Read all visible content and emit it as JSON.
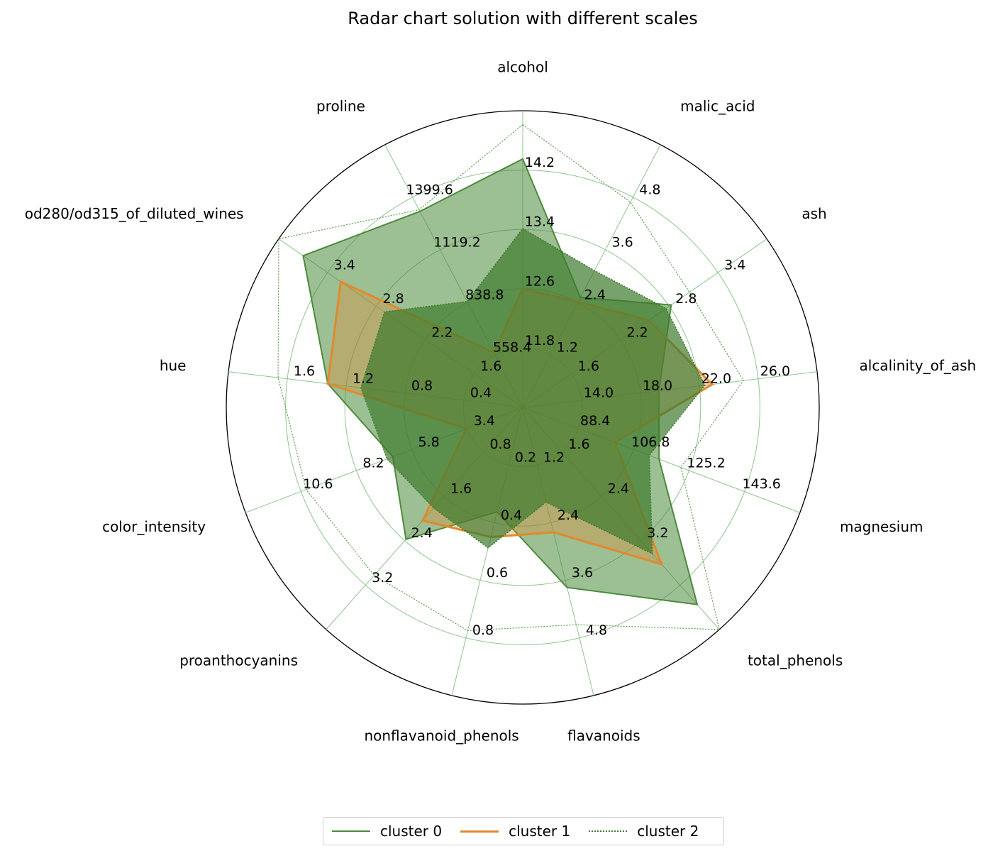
{
  "chart_data": {
    "type": "radar",
    "title": "Radar chart solution with different scales",
    "axes": [
      {
        "name": "alcohol",
        "ticks": [
          "11.8",
          "12.6",
          "13.4",
          "14.2"
        ],
        "range": [
          11.0,
          14.2
        ]
      },
      {
        "name": "malic_acid",
        "ticks": [
          "1.2",
          "2.4",
          "3.6",
          "4.8"
        ],
        "range": [
          0.0,
          4.8
        ]
      },
      {
        "name": "ash",
        "ticks": [
          "1.6",
          "2.2",
          "2.8",
          "3.4"
        ],
        "range": [
          1.0,
          3.4
        ]
      },
      {
        "name": "alcalinity_of_ash",
        "ticks": [
          "14.0",
          "18.0",
          "22.0",
          "26.0"
        ],
        "range": [
          10.0,
          26.0
        ]
      },
      {
        "name": "magnesium",
        "ticks": [
          "88.4",
          "106.8",
          "125.2",
          "143.6"
        ],
        "range": [
          70.0,
          143.6
        ]
      },
      {
        "name": "total_phenols",
        "ticks": [
          "1.6",
          "2.4",
          "3.2"
        ],
        "range": [
          0.0,
          3.2
        ]
      },
      {
        "name": "flavanoids",
        "ticks": [
          "1.2",
          "2.4",
          "3.6",
          "4.8"
        ],
        "range": [
          0.0,
          4.8
        ]
      },
      {
        "name": "nonflavanoid_phenols",
        "ticks": [
          "0.2",
          "0.4",
          "0.6",
          "0.8"
        ],
        "range": [
          0.0,
          0.8
        ]
      },
      {
        "name": "proanthocyanins",
        "ticks": [
          "0.8",
          "1.6",
          "2.4",
          "3.2"
        ],
        "range": [
          0.0,
          3.2
        ]
      },
      {
        "name": "color_intensity",
        "ticks": [
          "3.4",
          "5.8",
          "8.2",
          "10.6"
        ],
        "range": [
          1.0,
          10.6
        ]
      },
      {
        "name": "hue",
        "ticks": [
          "0.4",
          "0.8",
          "1.2",
          "1.6"
        ],
        "range": [
          0.0,
          1.6
        ]
      },
      {
        "name": "od280/od315_of_diluted_wines",
        "ticks": [
          "1.6",
          "2.2",
          "2.8",
          "3.4"
        ],
        "range": [
          1.0,
          3.4
        ]
      },
      {
        "name": "proline",
        "ticks": [
          "558.4",
          "838.8",
          "1119.2",
          "1399.6"
        ],
        "range": [
          278.0,
          1399.6
        ]
      }
    ],
    "series": [
      {
        "name": "cluster 0",
        "color": "#4c8a3c",
        "values": [
          13.68,
          2.01,
          2.46,
          17.4,
          106.2,
          2.84,
          3.0,
          0.29,
          1.9,
          5.5,
          1.06,
          3.16,
          1115
        ]
      },
      {
        "name": "cluster 1",
        "color": "#e08a2e",
        "values": [
          12.28,
          1.93,
          2.24,
          20.3,
          94.5,
          2.26,
          2.08,
          0.36,
          1.63,
          2.95,
          1.06,
          2.79,
          512
        ]
      },
      {
        "name": "cluster 2",
        "color": "#3e7a2e",
        "values": [
          12.93,
          2.5,
          2.41,
          19.9,
          103.6,
          2.11,
          1.58,
          0.39,
          1.45,
          5.7,
          0.88,
          2.36,
          730
        ]
      }
    ],
    "max_curve": [
      14.05,
      3.75,
      2.64,
      22.0,
      112.0,
      3.72,
      3.62,
      0.62,
      2.42,
      8.5,
      1.33,
      3.42,
      1122
    ],
    "legend_position": "bottom-center",
    "grid": true
  }
}
